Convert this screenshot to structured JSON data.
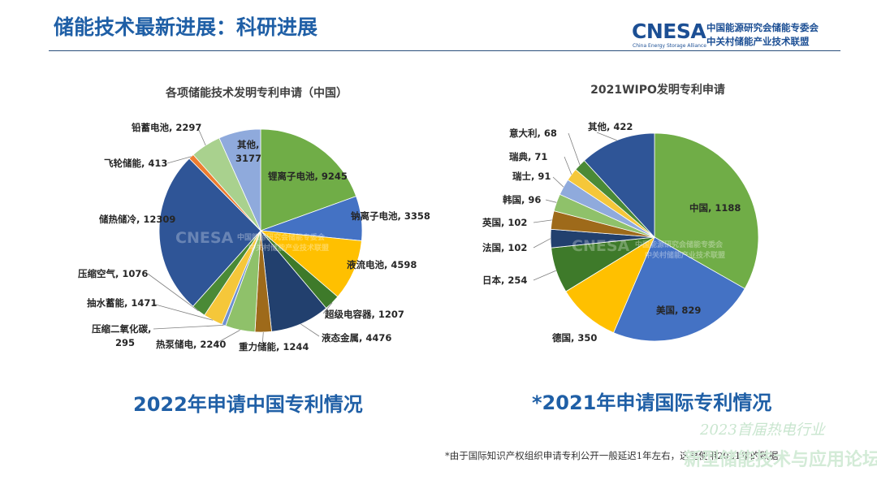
{
  "header": {
    "title": "储能技术最新进展：科研进展"
  },
  "logo": {
    "mark": "CNESA",
    "sub": "China Energy Storage Alliance",
    "line1": "中国能源研究会储能专委会",
    "line2": "中关村储能产业技术联盟"
  },
  "captions": {
    "left": "2022年申请中国专利情况",
    "right": "*2021年申请国际专利情况"
  },
  "footnote": "*由于国际知识产权组织申请专利公开一般延迟1年左右，这里使用2021年的数据",
  "watermark": {
    "top": "2023首届热电行业",
    "bottom": "新型储能技术与应用论坛",
    "center_mark": "CNESA",
    "center_line1": "中国能源研究会储能专委会",
    "center_line2": "中关村储能产业技术联盟"
  },
  "colors": {
    "title_blue": "#1f5fa6",
    "green": "#70ad47",
    "blue": "#4472c4",
    "gold": "#ffc000",
    "dark_green": "#3e7a2a",
    "dark_navy": "#22406e",
    "brown": "#9e6a1a",
    "light_green": "#8fc16a",
    "yellow": "#f5c73a",
    "mid_blue": "#2f5597",
    "pale_green": "#a9d18e",
    "orange": "#ed7d31",
    "light_blue": "#8faadc"
  },
  "chart_data": [
    {
      "type": "pie",
      "title": "各项储能技术发明专利申请（中国）",
      "series": [
        {
          "label": "锂离子电池",
          "value": 9245,
          "color": "#70ad47"
        },
        {
          "label": "钠离子电池",
          "value": 3358,
          "color": "#4472c4"
        },
        {
          "label": "液流电池",
          "value": 4598,
          "color": "#ffc000"
        },
        {
          "label": "超级电容器",
          "value": 1207,
          "color": "#3e7a2a"
        },
        {
          "label": "液态金属",
          "value": 4476,
          "color": "#22406e"
        },
        {
          "label": "重力储能",
          "value": 1244,
          "color": "#9e6a1a"
        },
        {
          "label": "热泵储电",
          "value": 2240,
          "color": "#8fc16a"
        },
        {
          "label": "压缩二氧化碳",
          "value": 295,
          "color": "#6e90d0"
        },
        {
          "label": "抽水蓄能",
          "value": 1471,
          "color": "#f5c73a"
        },
        {
          "label": "压缩空气",
          "value": 1076,
          "color": "#4a8a36"
        },
        {
          "label": "储热储冷",
          "value": 12309,
          "color": "#2f5597"
        },
        {
          "label": "飞轮储能",
          "value": 413,
          "color": "#ed7d31"
        },
        {
          "label": "铅蓄电池",
          "value": 2297,
          "color": "#a9d18e"
        },
        {
          "label": "其他",
          "value": 3177,
          "color": "#8faadc"
        }
      ]
    },
    {
      "type": "pie",
      "title": "2021WIPO发明专利申请",
      "series": [
        {
          "label": "中国",
          "value": 1188,
          "color": "#70ad47"
        },
        {
          "label": "美国",
          "value": 829,
          "color": "#4472c4"
        },
        {
          "label": "德国",
          "value": 350,
          "color": "#ffc000"
        },
        {
          "label": "日本",
          "value": 254,
          "color": "#3e7a2a"
        },
        {
          "label": "法国",
          "value": 102,
          "color": "#22406e"
        },
        {
          "label": "英国",
          "value": 102,
          "color": "#9e6a1a"
        },
        {
          "label": "韩国",
          "value": 96,
          "color": "#8fc16a"
        },
        {
          "label": "瑞士",
          "value": 91,
          "color": "#8faadc"
        },
        {
          "label": "瑞典",
          "value": 71,
          "color": "#f5c73a"
        },
        {
          "label": "意大利",
          "value": 68,
          "color": "#4a8a36"
        },
        {
          "label": "其他",
          "value": 422,
          "color": "#2f5597"
        }
      ]
    }
  ]
}
